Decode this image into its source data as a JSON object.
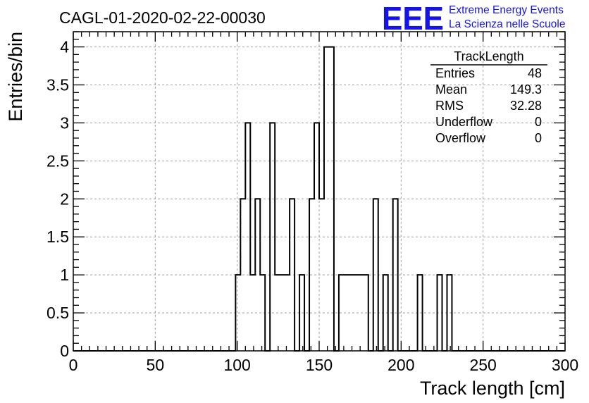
{
  "header": {
    "run_title": "CAGL-01-2020-02-22-00030",
    "logo_text": "EEE",
    "logo_line1": "Extreme Energy Events",
    "logo_line2": "La Scienza nelle Scuole",
    "logo_color": "#1414e6"
  },
  "stats_box": {
    "title": "TrackLength",
    "rows": [
      {
        "label": "Entries",
        "value": "48"
      },
      {
        "label": "Mean",
        "value": "149.3"
      },
      {
        "label": "RMS",
        "value": "32.28"
      },
      {
        "label": "Underflow",
        "value": "0"
      },
      {
        "label": "Overflow",
        "value": "0"
      }
    ]
  },
  "chart_data": {
    "type": "bar",
    "style": "step-histogram",
    "title": "CAGL-01-2020-02-22-00030",
    "xlabel": "Track length [cm]",
    "ylabel": "Entries/bin",
    "xlim": [
      0,
      300
    ],
    "ylim": [
      0,
      4.2
    ],
    "grid": true,
    "x_ticks": [
      0,
      50,
      100,
      150,
      200,
      250,
      300
    ],
    "x_tick_labels": [
      "0",
      "50",
      "100",
      "150",
      "200",
      "250",
      "300"
    ],
    "y_ticks": [
      0,
      0.5,
      1,
      1.5,
      2,
      2.5,
      3,
      3.5,
      4
    ],
    "y_tick_labels": [
      "0",
      "0.5",
      "1",
      "1.5",
      "2",
      "2.5",
      "3",
      "3.5",
      "4"
    ],
    "bin_width": 3,
    "bin_start": 0,
    "values": [
      0,
      0,
      0,
      0,
      0,
      0,
      0,
      0,
      0,
      0,
      0,
      0,
      0,
      0,
      0,
      0,
      0,
      0,
      0,
      0,
      0,
      0,
      0,
      0,
      0,
      0,
      0,
      0,
      0,
      0,
      0,
      0,
      0,
      1,
      2,
      3,
      1,
      2,
      1,
      0,
      3,
      1,
      1,
      1,
      2,
      0,
      1,
      0,
      2,
      3,
      2,
      4,
      4,
      0,
      1,
      1,
      1,
      1,
      1,
      1,
      0,
      2,
      0,
      1,
      0,
      2,
      0,
      0,
      0,
      0,
      1,
      0,
      0,
      0,
      1,
      0,
      1,
      0,
      0,
      0,
      0,
      0,
      0,
      0,
      0,
      0,
      0,
      0,
      0,
      0,
      0,
      0,
      0,
      0,
      0,
      0,
      0,
      0,
      0,
      0
    ],
    "line_color": "#000000"
  }
}
